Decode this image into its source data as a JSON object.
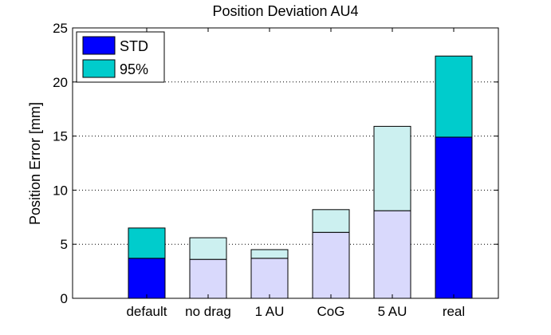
{
  "chart_data": {
    "type": "bar",
    "stacked": true,
    "title": "Position Deviation AU4",
    "xlabel": "",
    "ylabel": "Position Error [mm]",
    "ylim": [
      0,
      25
    ],
    "yticks": [
      0,
      5,
      10,
      15,
      20,
      25
    ],
    "grid": "horizontal dotted",
    "legend_position": "top-left",
    "categories": [
      "default",
      "no drag",
      "1 AU",
      "CoG",
      "5 AU",
      "real"
    ],
    "series": [
      {
        "name": "STD",
        "values": [
          3.7,
          3.6,
          3.7,
          6.1,
          8.1,
          14.9
        ],
        "color": "#0000ff",
        "faded_color": "#d9d9fc"
      },
      {
        "name": "95%",
        "values": [
          2.8,
          2.0,
          0.8,
          2.1,
          7.8,
          7.5
        ],
        "color": "#00cccc",
        "faded_color": "#ccf0f0"
      }
    ],
    "highlighted": [
      true,
      false,
      false,
      false,
      false,
      true
    ]
  }
}
